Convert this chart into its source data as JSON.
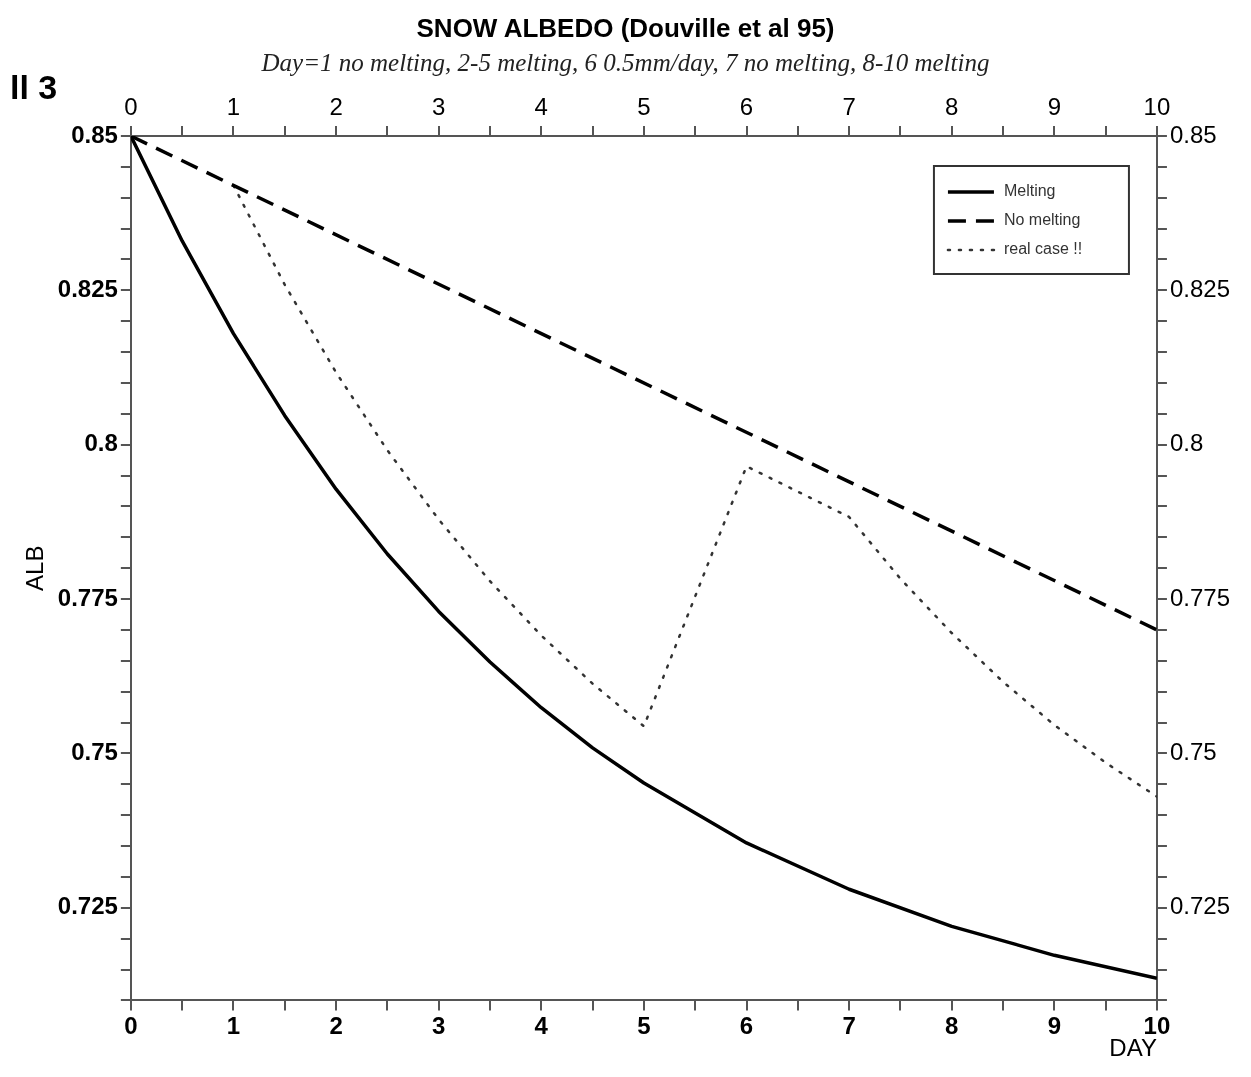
{
  "chart_data": {
    "type": "line",
    "title": "SNOW ALBEDO (Douville et al 95)",
    "subtitle": "Day=1 no melting, 2-5 melting, 6 0.5mm/day, 7 no melting, 8-10 melting",
    "xlabel": "DAY",
    "ylabel": "ALB",
    "annotations": [
      "ll 3"
    ],
    "x": [
      0,
      0.5,
      1,
      1.5,
      2,
      2.5,
      3,
      3.5,
      4,
      4.5,
      5,
      6,
      7,
      8,
      9,
      10
    ],
    "series": [
      {
        "name": "Melting",
        "color": "#000000",
        "line_style": "solid",
        "values": [
          0.85,
          0.833,
          0.818,
          0.8047,
          0.7928,
          0.7823,
          0.773,
          0.7648,
          0.7574,
          0.7509,
          0.7452,
          0.7355,
          0.728,
          0.722,
          0.7173,
          0.7136
        ]
      },
      {
        "name": "No melting",
        "color": "#000000",
        "line_style": "dashed",
        "x": [
          0,
          10
        ],
        "values": [
          0.85,
          0.77
        ]
      },
      {
        "name": "real case !!",
        "color": "#333333",
        "line_style": "dotted",
        "x": [
          1,
          1.5,
          2,
          2.5,
          3,
          3.5,
          4,
          4.5,
          5,
          6,
          7,
          7.5,
          8,
          8.5,
          9,
          9.5,
          10
        ],
        "values": [
          0.842,
          0.8259,
          0.8117,
          0.7991,
          0.7879,
          0.7779,
          0.7691,
          0.7613,
          0.7544,
          0.7965,
          0.7883,
          0.7783,
          0.7695,
          0.7616,
          0.7546,
          0.7485,
          0.743
        ]
      }
    ],
    "xlim": [
      0,
      10
    ],
    "xticks": [
      0,
      {
        "value": 0.5,
        "label": null
      },
      1,
      {
        "value": 1.5,
        "label": null
      },
      2,
      {
        "value": 2.5,
        "label": null
      },
      3,
      {
        "value": 3.5,
        "label": null
      },
      4,
      {
        "value": 4.5,
        "label": null
      },
      5,
      {
        "value": 5.5,
        "label": null
      },
      6,
      {
        "value": 6.5,
        "label": null
      },
      7,
      {
        "value": 7.5,
        "label": null
      },
      8,
      {
        "value": 8.5,
        "label": null
      },
      9,
      {
        "value": 9.5,
        "label": null
      },
      10
    ],
    "x2lim": [
      0,
      10
    ],
    "x2ticks": [
      0,
      {
        "value": 0.5,
        "label": null
      },
      1,
      {
        "value": 1.5,
        "label": null
      },
      2,
      {
        "value": 2.5,
        "label": null
      },
      3,
      {
        "value": 3.5,
        "label": null
      },
      4,
      {
        "value": 4.5,
        "label": null
      },
      5,
      {
        "value": 5.5,
        "label": null
      },
      6,
      {
        "value": 6.5,
        "label": null
      },
      7,
      {
        "value": 7.5,
        "label": null
      },
      8,
      {
        "value": 8.5,
        "label": null
      },
      9,
      {
        "value": 9.5,
        "label": null
      },
      10
    ],
    "ylim": [
      0.71,
      0.85
    ],
    "yticks": [
      {
        "value": 0.71,
        "label": null
      },
      {
        "value": 0.715,
        "label": null
      },
      {
        "value": 0.72,
        "label": null
      },
      0.725,
      {
        "value": 0.73,
        "label": null
      },
      {
        "value": 0.735,
        "label": null
      },
      {
        "value": 0.74,
        "label": null
      },
      {
        "value": 0.745,
        "label": null
      },
      0.75,
      {
        "value": 0.755,
        "label": null
      },
      {
        "value": 0.76,
        "label": null
      },
      {
        "value": 0.765,
        "label": null
      },
      {
        "value": 0.77,
        "label": null
      },
      0.775,
      {
        "value": 0.78,
        "label": null
      },
      {
        "value": 0.785,
        "label": null
      },
      {
        "value": 0.79,
        "label": null
      },
      {
        "value": 0.795,
        "label": null
      },
      0.8,
      {
        "value": 0.805,
        "label": null
      },
      {
        "value": 0.81,
        "label": null
      },
      {
        "value": 0.815,
        "label": null
      },
      {
        "value": 0.82,
        "label": null
      },
      0.825,
      {
        "value": 0.83,
        "label": null
      },
      {
        "value": 0.835,
        "label": null
      },
      {
        "value": 0.84,
        "label": null
      },
      {
        "value": 0.845,
        "label": null
      },
      0.85
    ],
    "y2lim": [
      0.71,
      0.85
    ],
    "y2ticks": [
      {
        "value": 0.71,
        "label": null
      },
      {
        "value": 0.715,
        "label": null
      },
      {
        "value": 0.72,
        "label": null
      },
      0.725,
      {
        "value": 0.73,
        "label": null
      },
      {
        "value": 0.735,
        "label": null
      },
      {
        "value": 0.74,
        "label": null
      },
      {
        "value": 0.745,
        "label": null
      },
      0.75,
      {
        "value": 0.755,
        "label": null
      },
      {
        "value": 0.76,
        "label": null
      },
      {
        "value": 0.765,
        "label": null
      },
      {
        "value": 0.77,
        "label": null
      },
      0.775,
      {
        "value": 0.78,
        "label": null
      },
      {
        "value": 0.785,
        "label": null
      },
      {
        "value": 0.79,
        "label": null
      },
      {
        "value": 0.795,
        "label": null
      },
      0.8,
      {
        "value": 0.805,
        "label": null
      },
      {
        "value": 0.81,
        "label": null
      },
      {
        "value": 0.815,
        "label": null
      },
      {
        "value": 0.82,
        "label": null
      },
      0.825,
      {
        "value": 0.83,
        "label": null
      },
      {
        "value": 0.835,
        "label": null
      },
      {
        "value": 0.84,
        "label": null
      },
      {
        "value": 0.845,
        "label": null
      },
      0.85
    ],
    "grid": false,
    "legend": "top right",
    "marker": "none"
  }
}
